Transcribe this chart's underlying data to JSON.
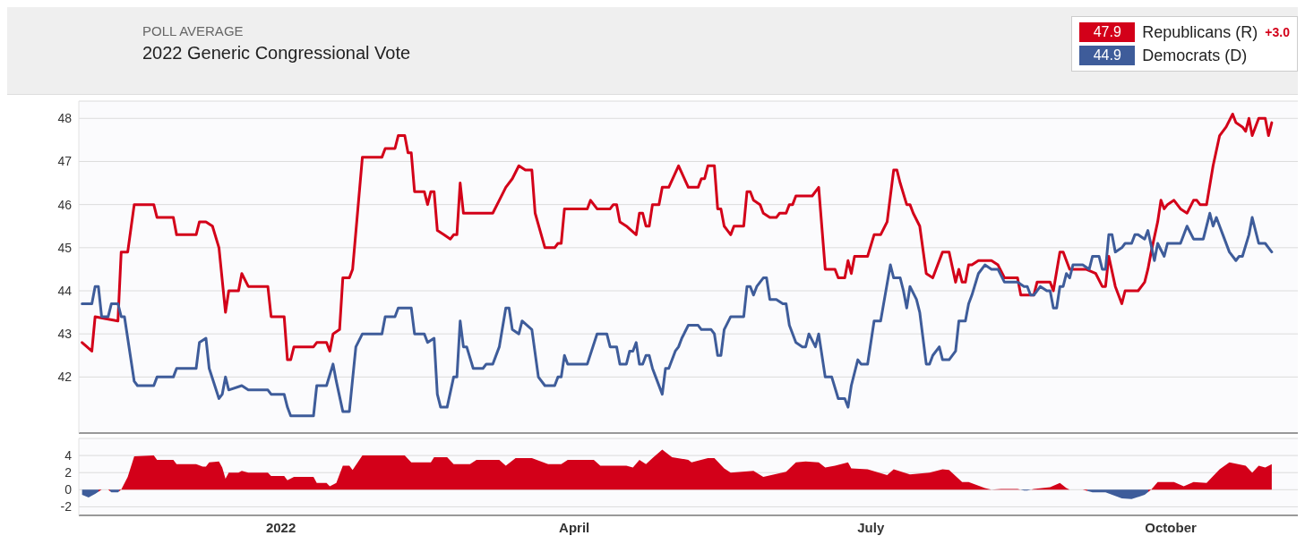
{
  "chart_data": [
    {
      "type": "line",
      "subtitle": "POLL AVERAGE",
      "title": "2022 Generic Congressional Vote",
      "annotations": [
        "47.9",
        "44.9",
        "+3.0"
      ],
      "legend": "top right",
      "grid": "y",
      "tick_labels": "y",
      "xlim": [
        "2021-10-31",
        "2022-11-09"
      ],
      "ylim": [
        40.7,
        48.4
      ],
      "yticks": [
        42,
        43,
        44,
        45,
        46,
        47,
        48
      ],
      "series": [
        {
          "name": "Republicans (R)",
          "color": "#d30019",
          "x": [
            "2021-11-01",
            "2021-11-04",
            "2021-11-05",
            "2021-11-12",
            "2021-11-13",
            "2021-11-15",
            "2021-11-17",
            "2021-11-23",
            "2021-11-24",
            "2021-11-29",
            "2021-11-30",
            "2021-12-06",
            "2021-12-07",
            "2021-12-09",
            "2021-12-11",
            "2021-12-13",
            "2021-12-15",
            "2021-12-16",
            "2021-12-19",
            "2021-12-20",
            "2021-12-22",
            "2021-12-28",
            "2021-12-29",
            "2022-01-02",
            "2022-01-03",
            "2022-01-04",
            "2022-01-05",
            "2022-01-11",
            "2022-01-12",
            "2022-01-15",
            "2022-01-16",
            "2022-01-17",
            "2022-01-19",
            "2022-01-20",
            "2022-01-22",
            "2022-01-23",
            "2022-01-26",
            "2022-02-01",
            "2022-02-02",
            "2022-02-05",
            "2022-02-06",
            "2022-02-08",
            "2022-02-09",
            "2022-02-10",
            "2022-02-11",
            "2022-02-14",
            "2022-02-15",
            "2022-02-16",
            "2022-02-17",
            "2022-02-18",
            "2022-02-20",
            "2022-02-22",
            "2022-02-23",
            "2022-02-24",
            "2022-02-25",
            "2022-02-26",
            "2022-03-07",
            "2022-03-09",
            "2022-03-11",
            "2022-03-13",
            "2022-03-15",
            "2022-03-17",
            "2022-03-19",
            "2022-03-20",
            "2022-03-23",
            "2022-03-26",
            "2022-03-27",
            "2022-03-28",
            "2022-03-29",
            "2022-04-05",
            "2022-04-06",
            "2022-04-08",
            "2022-04-12",
            "2022-04-13",
            "2022-04-14",
            "2022-04-15",
            "2022-04-17",
            "2022-04-20",
            "2022-04-21",
            "2022-04-22",
            "2022-04-23",
            "2022-04-24",
            "2022-04-25",
            "2022-04-27",
            "2022-04-28",
            "2022-04-30",
            "2022-05-03",
            "2022-05-06",
            "2022-05-09",
            "2022-05-10",
            "2022-05-11",
            "2022-05-12",
            "2022-05-14",
            "2022-05-15",
            "2022-05-16",
            "2022-05-17",
            "2022-05-19",
            "2022-05-20",
            "2022-05-23",
            "2022-05-24",
            "2022-05-25",
            "2022-05-26",
            "2022-05-28",
            "2022-05-29",
            "2022-05-31",
            "2022-06-02",
            "2022-06-03",
            "2022-06-05",
            "2022-06-06",
            "2022-06-07",
            "2022-06-08",
            "2022-06-13",
            "2022-06-15",
            "2022-06-17",
            "2022-06-20",
            "2022-06-21",
            "2022-06-23",
            "2022-06-24",
            "2022-06-25",
            "2022-06-26",
            "2022-06-30",
            "2022-07-02",
            "2022-07-04",
            "2022-07-06",
            "2022-07-08",
            "2022-07-09",
            "2022-07-10",
            "2022-07-12",
            "2022-07-13",
            "2022-07-14",
            "2022-07-16",
            "2022-07-18",
            "2022-07-20",
            "2022-07-23",
            "2022-07-25",
            "2022-07-27",
            "2022-07-28",
            "2022-07-29",
            "2022-07-30",
            "2022-07-31",
            "2022-08-01",
            "2022-08-03",
            "2022-08-07",
            "2022-08-09",
            "2022-08-11",
            "2022-08-15",
            "2022-08-16",
            "2022-08-20",
            "2022-08-21",
            "2022-08-25",
            "2022-08-26",
            "2022-08-28",
            "2022-08-29",
            "2022-08-31",
            "2022-09-05",
            "2022-09-08",
            "2022-09-10",
            "2022-09-11",
            "2022-09-12",
            "2022-09-14",
            "2022-09-16",
            "2022-09-17",
            "2022-09-21",
            "2022-09-23",
            "2022-09-24",
            "2022-09-25",
            "2022-09-27",
            "2022-09-28",
            "2022-09-29",
            "2022-09-30",
            "2022-10-02",
            "2022-10-04",
            "2022-10-06",
            "2022-10-08",
            "2022-10-09",
            "2022-10-10",
            "2022-10-12",
            "2022-10-14",
            "2022-10-16",
            "2022-10-18",
            "2022-10-20",
            "2022-10-21",
            "2022-10-23",
            "2022-10-24",
            "2022-10-25",
            "2022-10-26",
            "2022-10-28",
            "2022-10-30",
            "2022-10-31",
            "2022-11-01"
          ],
          "values": [
            42.8,
            42.6,
            43.4,
            43.3,
            44.9,
            44.9,
            46.0,
            46.0,
            45.7,
            45.7,
            45.3,
            45.3,
            45.6,
            45.6,
            45.5,
            45.0,
            43.5,
            44.0,
            44.0,
            44.4,
            44.1,
            44.1,
            43.4,
            43.4,
            42.4,
            42.4,
            42.7,
            42.7,
            42.8,
            42.8,
            42.6,
            43.0,
            43.1,
            44.3,
            44.3,
            44.5,
            47.1,
            47.1,
            47.3,
            47.3,
            47.6,
            47.6,
            47.2,
            47.2,
            46.3,
            46.3,
            46.0,
            46.3,
            46.3,
            45.4,
            45.3,
            45.2,
            45.3,
            45.3,
            46.5,
            45.8,
            45.8,
            46.1,
            46.4,
            46.6,
            46.9,
            46.8,
            46.8,
            45.8,
            45.0,
            45.0,
            45.1,
            45.1,
            45.9,
            45.9,
            46.1,
            45.9,
            45.9,
            46.0,
            46.0,
            45.6,
            45.5,
            45.3,
            45.8,
            45.8,
            45.5,
            45.5,
            46.0,
            46.0,
            46.4,
            46.4,
            46.9,
            46.4,
            46.4,
            46.6,
            46.6,
            46.9,
            46.9,
            45.9,
            45.9,
            45.5,
            45.3,
            45.5,
            45.5,
            46.3,
            46.3,
            46.1,
            46.0,
            45.8,
            45.7,
            45.7,
            45.8,
            45.8,
            46.0,
            46.0,
            46.2,
            46.2,
            46.4,
            44.5,
            44.5,
            44.3,
            44.3,
            44.7,
            44.4,
            44.8,
            44.8,
            45.3,
            45.3,
            45.6,
            46.8,
            46.8,
            46.5,
            46.0,
            46.0,
            45.8,
            45.5,
            44.4,
            44.3,
            44.9,
            44.9,
            44.2,
            44.5,
            44.2,
            44.2,
            44.6,
            44.6,
            44.7,
            44.7,
            44.6,
            44.3,
            44.3,
            43.9,
            43.9,
            44.2,
            44.2,
            44.0,
            44.9,
            44.9,
            44.5,
            44.5,
            44.4,
            44.1,
            44.1,
            44.8,
            44.1,
            43.7,
            44.0,
            44.0,
            44.2,
            44.5,
            44.9,
            45.6,
            46.1,
            45.9,
            46.0,
            46.1,
            45.9,
            45.8,
            46.1,
            46.1,
            46.0,
            46.0,
            46.9,
            47.6,
            47.8,
            48.1,
            47.9,
            47.8,
            47.7,
            48.0,
            47.6,
            48.0,
            48.0,
            47.6,
            47.9
          ]
        },
        {
          "name": "Democrats (D)",
          "color": "#3e5c9a",
          "x": [
            "2021-11-01",
            "2021-11-04",
            "2021-11-05",
            "2021-11-06",
            "2021-11-07",
            "2021-11-09",
            "2021-11-10",
            "2021-11-12",
            "2021-11-13",
            "2021-11-14",
            "2021-11-17",
            "2021-11-18",
            "2021-11-23",
            "2021-11-24",
            "2021-11-29",
            "2021-11-30",
            "2021-12-06",
            "2021-12-07",
            "2021-12-09",
            "2021-12-10",
            "2021-12-13",
            "2021-12-14",
            "2021-12-15",
            "2021-12-16",
            "2021-12-20",
            "2021-12-22",
            "2021-12-28",
            "2021-12-29",
            "2022-01-02",
            "2022-01-03",
            "2022-01-04",
            "2022-01-11",
            "2022-01-12",
            "2022-01-15",
            "2022-01-17",
            "2022-01-18",
            "2022-01-20",
            "2022-01-22",
            "2022-01-24",
            "2022-01-26",
            "2022-02-01",
            "2022-02-02",
            "2022-02-05",
            "2022-02-06",
            "2022-02-10",
            "2022-02-11",
            "2022-02-14",
            "2022-02-15",
            "2022-02-17",
            "2022-02-18",
            "2022-02-19",
            "2022-02-21",
            "2022-02-23",
            "2022-02-24",
            "2022-02-25",
            "2022-02-26",
            "2022-02-27",
            "2022-03-01",
            "2022-03-04",
            "2022-03-05",
            "2022-03-07",
            "2022-03-09",
            "2022-03-11",
            "2022-03-12",
            "2022-03-13",
            "2022-03-15",
            "2022-03-16",
            "2022-03-19",
            "2022-03-21",
            "2022-03-23",
            "2022-03-26",
            "2022-03-27",
            "2022-03-28",
            "2022-03-29",
            "2022-03-30",
            "2022-04-05",
            "2022-04-08",
            "2022-04-11",
            "2022-04-12",
            "2022-04-14",
            "2022-04-15",
            "2022-04-17",
            "2022-04-18",
            "2022-04-19",
            "2022-04-20",
            "2022-04-21",
            "2022-04-22",
            "2022-04-23",
            "2022-04-24",
            "2022-04-25",
            "2022-04-26",
            "2022-04-28",
            "2022-04-29",
            "2022-04-30",
            "2022-05-02",
            "2022-05-03",
            "2022-05-04",
            "2022-05-06",
            "2022-05-09",
            "2022-05-10",
            "2022-05-13",
            "2022-05-14",
            "2022-05-15",
            "2022-05-16",
            "2022-05-17",
            "2022-05-19",
            "2022-05-23",
            "2022-05-24",
            "2022-05-25",
            "2022-05-26",
            "2022-05-27",
            "2022-05-29",
            "2022-05-30",
            "2022-05-31",
            "2022-06-02",
            "2022-06-04",
            "2022-06-05",
            "2022-06-06",
            "2022-06-08",
            "2022-06-10",
            "2022-06-11",
            "2022-06-12",
            "2022-06-14",
            "2022-06-15",
            "2022-06-17",
            "2022-06-19",
            "2022-06-21",
            "2022-06-23",
            "2022-06-24",
            "2022-06-25",
            "2022-06-27",
            "2022-06-28",
            "2022-06-30",
            "2022-07-02",
            "2022-07-04",
            "2022-07-07",
            "2022-07-08",
            "2022-07-10",
            "2022-07-11",
            "2022-07-12",
            "2022-07-13",
            "2022-07-15",
            "2022-07-16",
            "2022-07-18",
            "2022-07-19",
            "2022-07-20",
            "2022-07-22",
            "2022-07-23",
            "2022-07-25",
            "2022-07-27",
            "2022-07-28",
            "2022-07-30",
            "2022-07-31",
            "2022-08-01",
            "2022-08-03",
            "2022-08-05",
            "2022-08-07",
            "2022-08-09",
            "2022-08-11",
            "2022-08-15",
            "2022-08-17",
            "2022-08-18",
            "2022-08-19",
            "2022-08-20",
            "2022-08-22",
            "2022-08-24",
            "2022-08-25",
            "2022-08-26",
            "2022-08-27",
            "2022-08-28",
            "2022-08-29",
            "2022-08-30",
            "2022-08-31",
            "2022-09-01",
            "2022-09-04",
            "2022-09-06",
            "2022-09-07",
            "2022-09-09",
            "2022-09-10",
            "2022-09-11",
            "2022-09-12",
            "2022-09-13",
            "2022-09-14",
            "2022-09-16",
            "2022-09-17",
            "2022-09-19",
            "2022-09-20",
            "2022-09-21",
            "2022-09-23",
            "2022-09-24",
            "2022-09-26",
            "2022-09-27",
            "2022-09-29",
            "2022-09-30",
            "2022-10-04",
            "2022-10-06",
            "2022-10-08",
            "2022-10-11",
            "2022-10-13",
            "2022-10-14",
            "2022-10-15",
            "2022-10-17",
            "2022-10-19",
            "2022-10-21",
            "2022-10-22",
            "2022-10-23",
            "2022-10-25",
            "2022-10-26",
            "2022-10-28",
            "2022-10-30",
            "2022-10-31",
            "2022-11-01"
          ],
          "values": [
            43.7,
            43.7,
            44.1,
            44.1,
            43.4,
            43.4,
            43.7,
            43.7,
            43.4,
            43.4,
            41.9,
            41.8,
            41.8,
            42.0,
            42.0,
            42.2,
            42.2,
            42.8,
            42.9,
            42.2,
            41.5,
            41.6,
            42.0,
            41.7,
            41.8,
            41.7,
            41.7,
            41.6,
            41.6,
            41.3,
            41.1,
            41.1,
            41.8,
            41.8,
            42.3,
            41.9,
            41.2,
            41.2,
            42.7,
            43.0,
            43.0,
            43.4,
            43.4,
            43.6,
            43.6,
            43.0,
            43.0,
            42.8,
            42.9,
            41.6,
            41.3,
            41.3,
            42.0,
            42.0,
            43.3,
            42.7,
            42.7,
            42.2,
            42.2,
            42.3,
            42.3,
            42.7,
            43.6,
            43.6,
            43.1,
            43.0,
            43.3,
            43.1,
            42.0,
            41.8,
            41.8,
            42.0,
            42.0,
            42.5,
            42.3,
            42.3,
            43.0,
            43.0,
            42.7,
            42.7,
            42.3,
            42.3,
            42.6,
            42.6,
            42.8,
            42.3,
            42.3,
            42.5,
            42.5,
            42.2,
            42.0,
            41.6,
            42.2,
            42.2,
            42.6,
            42.7,
            42.9,
            43.2,
            43.2,
            43.1,
            43.1,
            43.0,
            42.5,
            42.5,
            43.1,
            43.4,
            43.4,
            44.1,
            44.1,
            43.9,
            44.1,
            44.3,
            44.3,
            43.8,
            43.8,
            43.7,
            43.7,
            43.2,
            42.8,
            42.7,
            42.7,
            43.0,
            42.7,
            43.0,
            42.0,
            42.0,
            41.5,
            41.5,
            41.3,
            41.8,
            42.4,
            42.3,
            42.3,
            43.3,
            43.3,
            44.6,
            44.3,
            44.3,
            44.0,
            43.6,
            44.1,
            43.8,
            43.5,
            42.3,
            42.3,
            42.5,
            42.7,
            42.4,
            42.4,
            42.6,
            43.3,
            43.3,
            43.7,
            43.9,
            44.4,
            44.6,
            44.5,
            44.5,
            44.2,
            44.2,
            44.1,
            44.1,
            43.9,
            43.9,
            44.1,
            44.0,
            44.0,
            43.6,
            43.6,
            44.1,
            44.1,
            44.4,
            44.3,
            44.6,
            44.6,
            44.5,
            44.8,
            44.8,
            44.5,
            44.5,
            45.3,
            45.3,
            44.9,
            45.0,
            45.1,
            45.1,
            45.3,
            45.3,
            45.2,
            45.4,
            44.7,
            45.1,
            44.8,
            45.1,
            45.1,
            45.5,
            45.2,
            45.2,
            45.8,
            45.5,
            45.7,
            45.3,
            44.9,
            44.7,
            44.8,
            44.8,
            45.3,
            45.7,
            45.1,
            45.1,
            45.0,
            44.9
          ]
        }
      ]
    },
    {
      "type": "area",
      "grid": "y",
      "xlim": [
        "2021-10-31",
        "2022-11-09"
      ],
      "ylim": [
        -3,
        6
      ],
      "yticks": [
        -2,
        0,
        2,
        4
      ],
      "xticks": [
        {
          "value": "2022-01-01",
          "label": "2022"
        },
        {
          "value": "2022-04-01",
          "label": "April"
        },
        {
          "value": "2022-07-01",
          "label": "July"
        },
        {
          "value": "2022-10-01",
          "label": "October"
        }
      ],
      "x": [
        "2021-11-01",
        "2021-11-03",
        "2021-11-05",
        "2021-11-07",
        "2021-11-09",
        "2021-11-10",
        "2021-11-12",
        "2021-11-13",
        "2021-11-15",
        "2021-11-17",
        "2021-11-23",
        "2021-11-24",
        "2021-11-29",
        "2021-11-30",
        "2021-12-06",
        "2021-12-08",
        "2021-12-09",
        "2021-12-10",
        "2021-12-13",
        "2021-12-14",
        "2021-12-15",
        "2021-12-16",
        "2021-12-19",
        "2021-12-20",
        "2021-12-22",
        "2021-12-28",
        "2021-12-29",
        "2022-01-02",
        "2022-01-03",
        "2022-01-05",
        "2022-01-11",
        "2022-01-12",
        "2022-01-15",
        "2022-01-16",
        "2022-01-18",
        "2022-01-20",
        "2022-01-22",
        "2022-01-23",
        "2022-01-26",
        "2022-02-08",
        "2022-02-10",
        "2022-02-16",
        "2022-02-17",
        "2022-02-21",
        "2022-02-23",
        "2022-02-28",
        "2022-03-02",
        "2022-03-09",
        "2022-03-11",
        "2022-03-14",
        "2022-03-19",
        "2022-03-24",
        "2022-03-28",
        "2022-03-30",
        "2022-04-07",
        "2022-04-09",
        "2022-04-17",
        "2022-04-19",
        "2022-04-21",
        "2022-04-23",
        "2022-04-25",
        "2022-04-28",
        "2022-05-01",
        "2022-05-06",
        "2022-05-07",
        "2022-05-12",
        "2022-05-14",
        "2022-05-17",
        "2022-05-19",
        "2022-05-26",
        "2022-05-29",
        "2022-06-05",
        "2022-06-08",
        "2022-06-11",
        "2022-06-15",
        "2022-06-17",
        "2022-06-20",
        "2022-06-24",
        "2022-06-25",
        "2022-06-30",
        "2022-07-06",
        "2022-07-08",
        "2022-07-13",
        "2022-07-19",
        "2022-07-23",
        "2022-07-25",
        "2022-07-29",
        "2022-07-31",
        "2022-08-05",
        "2022-08-07",
        "2022-08-10",
        "2022-08-15",
        "2022-08-17",
        "2022-08-18",
        "2022-08-20",
        "2022-08-25",
        "2022-08-28",
        "2022-08-30",
        "2022-08-31",
        "2022-09-04",
        "2022-09-07",
        "2022-09-11",
        "2022-09-16",
        "2022-09-19",
        "2022-09-23",
        "2022-09-25",
        "2022-09-27",
        "2022-10-02",
        "2022-10-05",
        "2022-10-08",
        "2022-10-12",
        "2022-10-16",
        "2022-10-19",
        "2022-10-24",
        "2022-10-26",
        "2022-10-28",
        "2022-10-30",
        "2022-11-01"
      ],
      "values": [
        -0.6,
        -0.9,
        -0.5,
        0.0,
        0.0,
        -0.3,
        -0.3,
        0.0,
        1.5,
        3.9,
        4.0,
        3.5,
        3.5,
        3.0,
        3.0,
        2.7,
        2.7,
        3.2,
        3.3,
        2.6,
        1.3,
        2.0,
        2.0,
        2.2,
        2.0,
        2.0,
        1.6,
        1.6,
        1.1,
        1.5,
        1.5,
        0.8,
        0.8,
        0.4,
        0.8,
        2.8,
        2.8,
        2.3,
        4.0,
        4.0,
        3.2,
        3.2,
        3.8,
        3.8,
        3.0,
        3.0,
        3.5,
        3.5,
        2.8,
        3.7,
        3.7,
        3.0,
        3.0,
        3.5,
        3.5,
        2.8,
        2.8,
        2.6,
        3.5,
        3.0,
        3.7,
        4.7,
        3.8,
        3.5,
        3.2,
        3.7,
        3.7,
        2.5,
        2.0,
        2.2,
        1.5,
        2.1,
        3.2,
        3.3,
        3.2,
        2.6,
        2.8,
        3.2,
        2.5,
        2.4,
        1.7,
        2.4,
        1.8,
        2.0,
        2.4,
        2.3,
        0.9,
        0.9,
        0.2,
        0.0,
        0.1,
        0.1,
        -0.1,
        -0.1,
        0.1,
        0.3,
        0.8,
        0.2,
        0.0,
        0.0,
        -0.3,
        -0.3,
        -1.0,
        -1.1,
        -0.6,
        0.0,
        0.9,
        0.9,
        0.4,
        0.9,
        0.8,
        2.4,
        3.2,
        2.8,
        2.0,
        2.8,
        2.6,
        3.0
      ],
      "colors": [
        "#3e5c9a",
        "#3e5c9a",
        "#3e5c9a",
        "#d30019",
        "#d30019",
        "#3e5c9a",
        "#3e5c9a",
        "#d30019",
        "#d30019",
        "#d30019",
        "#d30019",
        "#d30019",
        "#d30019",
        "#d30019",
        "#d30019",
        "#d30019",
        "#d30019",
        "#d30019",
        "#d30019",
        "#d30019",
        "#d30019",
        "#d30019",
        "#d30019",
        "#d30019",
        "#d30019",
        "#d30019",
        "#d30019",
        "#d30019",
        "#d30019",
        "#d30019",
        "#d30019",
        "#d30019",
        "#d30019",
        "#d30019",
        "#d30019",
        "#d30019",
        "#d30019",
        "#d30019",
        "#d30019",
        "#d30019",
        "#d30019",
        "#d30019",
        "#d30019",
        "#d30019",
        "#d30019",
        "#d30019",
        "#d30019",
        "#d30019",
        "#d30019",
        "#d30019",
        "#d30019",
        "#d30019",
        "#d30019",
        "#d30019",
        "#d30019",
        "#d30019",
        "#d30019",
        "#d30019",
        "#d30019",
        "#d30019",
        "#d30019",
        "#d30019",
        "#d30019",
        "#d30019",
        "#d30019",
        "#d30019",
        "#d30019",
        "#d30019",
        "#d30019",
        "#d30019",
        "#d30019",
        "#d30019",
        "#d30019",
        "#d30019",
        "#d30019",
        "#d30019",
        "#d30019",
        "#d30019",
        "#d30019",
        "#d30019",
        "#d30019",
        "#d30019",
        "#d30019",
        "#d30019",
        "#d30019",
        "#d30019",
        "#d30019",
        "#d30019",
        "#d30019",
        "#d30019",
        "#d30019",
        "#d30019",
        "#3e5c9a",
        "#3e5c9a",
        "#d30019",
        "#d30019",
        "#d30019",
        "#d30019",
        "#d30019",
        "#d30019",
        "#3e5c9a",
        "#3e5c9a",
        "#3e5c9a",
        "#3e5c9a",
        "#3e5c9a",
        "#d30019",
        "#d30019",
        "#d30019",
        "#d30019",
        "#d30019",
        "#d30019",
        "#d30019",
        "#d30019",
        "#d30019",
        "#d30019",
        "#d30019",
        "#d30019",
        "#d30019"
      ]
    }
  ]
}
